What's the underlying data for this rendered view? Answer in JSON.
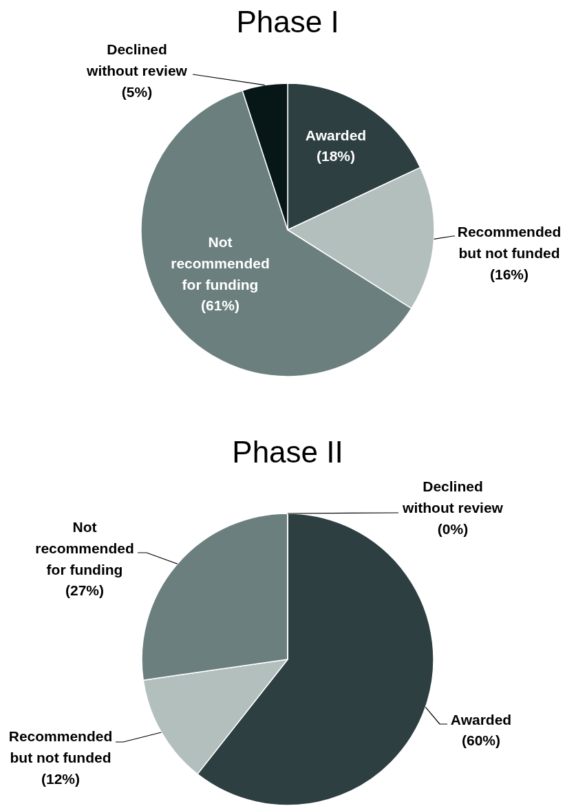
{
  "chart_data": [
    {
      "type": "pie",
      "title": "Phase I",
      "categories": [
        "Awarded",
        "Recommended but not funded",
        "Not recommended for funding",
        "Declined without review"
      ],
      "values": [
        18,
        16,
        61,
        5
      ],
      "colors": [
        "#2d3f41",
        "#b2bfbd",
        "#6b7f7e",
        "#071718"
      ],
      "value_labels": [
        "(18%)",
        "(16%)",
        "(61%)",
        "(5%)"
      ]
    },
    {
      "type": "pie",
      "title": "Phase II",
      "categories": [
        "Awarded",
        "Recommended but not funded",
        "Not recommended for funding",
        "Declined without review"
      ],
      "values": [
        60,
        12,
        27,
        0
      ],
      "colors": [
        "#2d3f41",
        "#b2bfbd",
        "#6b7f7e",
        "#071718"
      ],
      "value_labels": [
        "(60%)",
        "(12%)",
        "(27%)",
        "(0%)"
      ]
    }
  ]
}
